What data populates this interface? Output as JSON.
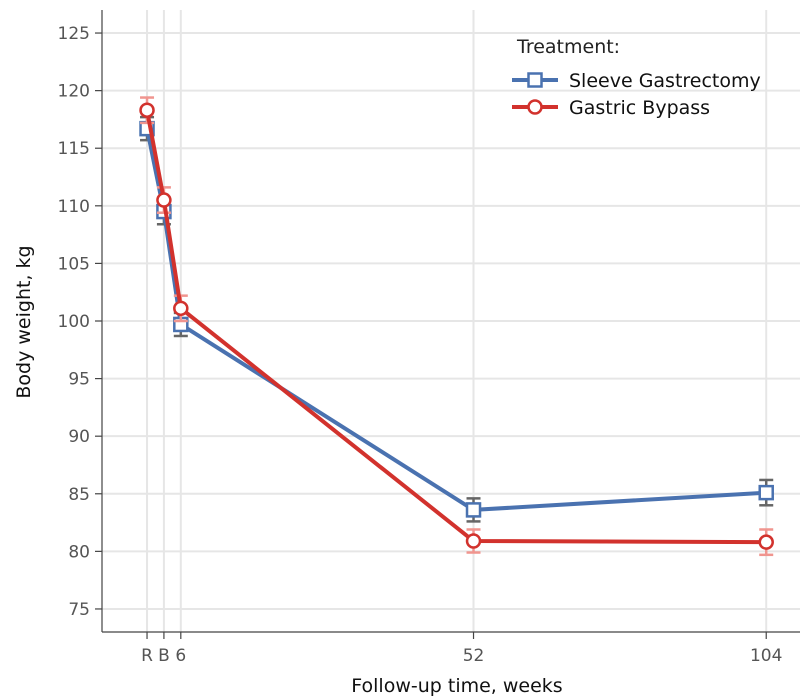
{
  "chart_data": {
    "type": "line",
    "xlabel": "Follow-up time, weeks",
    "ylabel": "Body weight, kg",
    "ylim": [
      73,
      127
    ],
    "xlim": [
      -14,
      110
    ],
    "x": [
      -6,
      -3,
      0,
      52,
      104
    ],
    "x_tick_labels": [
      "R",
      "B",
      "6",
      "52",
      "104"
    ],
    "y_ticks": [
      75,
      80,
      85,
      90,
      95,
      100,
      105,
      110,
      115,
      120,
      125
    ],
    "grid": true,
    "legend": {
      "title": "Treatment:",
      "position": "top-right"
    },
    "series": [
      {
        "name": "Sleeve Gastrectomy",
        "color": "#4a72b0",
        "error_color": "#666666",
        "marker": "square",
        "values": [
          116.7,
          109.5,
          99.7,
          83.6,
          85.1
        ],
        "error": [
          1.0,
          1.1,
          1.0,
          1.0,
          1.1
        ]
      },
      {
        "name": "Gastric Bypass",
        "color": "#d2322d",
        "error_color": "#f0958f",
        "marker": "circle",
        "values": [
          118.3,
          110.5,
          101.1,
          80.9,
          80.8
        ],
        "error": [
          1.1,
          1.1,
          1.1,
          1.0,
          1.1
        ]
      }
    ]
  }
}
